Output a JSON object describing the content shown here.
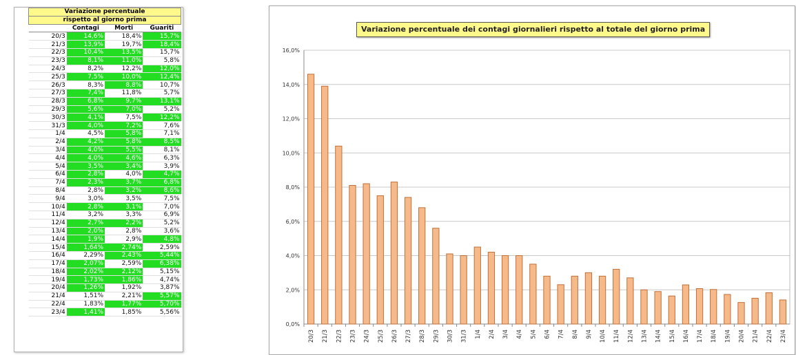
{
  "table": {
    "header_line1": "Variazione percentuale",
    "header_line2": "rispetto al giorno prima",
    "columns": [
      "Contagi",
      "Morti",
      "Guariti"
    ],
    "rows": [
      {
        "date": "20/3",
        "contagi": "14,6%",
        "morti": "18,4%",
        "guariti": "15,7%",
        "hl": [
          1,
          0,
          1
        ]
      },
      {
        "date": "21/3",
        "contagi": "13,9%",
        "morti": "19,7%",
        "guariti": "18,4%",
        "hl": [
          1,
          0,
          1
        ]
      },
      {
        "date": "22/3",
        "contagi": "10,4%",
        "morti": "13,5%",
        "guariti": "15,7%",
        "hl": [
          1,
          1,
          0
        ]
      },
      {
        "date": "23/3",
        "contagi": "8,1%",
        "morti": "11,0%",
        "guariti": "5,8%",
        "hl": [
          1,
          1,
          0
        ]
      },
      {
        "date": "24/3",
        "contagi": "8,2%",
        "morti": "12,2%",
        "guariti": "12,0%",
        "hl": [
          0,
          0,
          1
        ]
      },
      {
        "date": "25/3",
        "contagi": "7,5%",
        "morti": "10,0%",
        "guariti": "12,4%",
        "hl": [
          1,
          1,
          1
        ]
      },
      {
        "date": "26/3",
        "contagi": "8,3%",
        "morti": "8,8%",
        "guariti": "10,7%",
        "hl": [
          0,
          1,
          0
        ]
      },
      {
        "date": "27/3",
        "contagi": "7,4%",
        "morti": "11,8%",
        "guariti": "5,7%",
        "hl": [
          1,
          0,
          0
        ]
      },
      {
        "date": "28/3",
        "contagi": "6,8%",
        "morti": "9,7%",
        "guariti": "13,1%",
        "hl": [
          1,
          1,
          1
        ]
      },
      {
        "date": "29/3",
        "contagi": "5,6%",
        "morti": "7,0%",
        "guariti": "5,2%",
        "hl": [
          1,
          1,
          0
        ]
      },
      {
        "date": "30/3",
        "contagi": "4,1%",
        "morti": "7,5%",
        "guariti": "12,2%",
        "hl": [
          1,
          0,
          1
        ]
      },
      {
        "date": "31/3",
        "contagi": "4,0%",
        "morti": "7,2%",
        "guariti": "7,6%",
        "hl": [
          1,
          1,
          0
        ]
      },
      {
        "date": "1/4",
        "contagi": "4,5%",
        "morti": "5,8%",
        "guariti": "7,1%",
        "hl": [
          0,
          1,
          0
        ]
      },
      {
        "date": "2/4",
        "contagi": "4,2%",
        "morti": "5,8%",
        "guariti": "8,5%",
        "hl": [
          1,
          1,
          1
        ]
      },
      {
        "date": "3/4",
        "contagi": "4,0%",
        "morti": "5,5%",
        "guariti": "8,1%",
        "hl": [
          1,
          1,
          0
        ]
      },
      {
        "date": "4/4",
        "contagi": "4,0%",
        "morti": "4,6%",
        "guariti": "6,3%",
        "hl": [
          1,
          1,
          0
        ]
      },
      {
        "date": "5/4",
        "contagi": "3,5%",
        "morti": "3,4%",
        "guariti": "3,9%",
        "hl": [
          1,
          1,
          0
        ]
      },
      {
        "date": "6/4",
        "contagi": "2,8%",
        "morti": "4,0%",
        "guariti": "4,7%",
        "hl": [
          1,
          0,
          1
        ]
      },
      {
        "date": "7/4",
        "contagi": "2,3%",
        "morti": "3,7%",
        "guariti": "6,8%",
        "hl": [
          1,
          1,
          1
        ]
      },
      {
        "date": "8/4",
        "contagi": "2,8%",
        "morti": "3,2%",
        "guariti": "8,6%",
        "hl": [
          0,
          1,
          1
        ]
      },
      {
        "date": "9/4",
        "contagi": "3,0%",
        "morti": "3,5%",
        "guariti": "7,5%",
        "hl": [
          0,
          0,
          0
        ]
      },
      {
        "date": "10/4",
        "contagi": "2,8%",
        "morti": "3,1%",
        "guariti": "7,0%",
        "hl": [
          1,
          1,
          0
        ]
      },
      {
        "date": "11/4",
        "contagi": "3,2%",
        "morti": "3,3%",
        "guariti": "6,9%",
        "hl": [
          0,
          0,
          0
        ]
      },
      {
        "date": "12/4",
        "contagi": "2,7%",
        "morti": "2,2%",
        "guariti": "5,2%",
        "hl": [
          1,
          1,
          0
        ]
      },
      {
        "date": "13/4",
        "contagi": "2,0%",
        "morti": "2,8%",
        "guariti": "3,6%",
        "hl": [
          1,
          0,
          0
        ]
      },
      {
        "date": "14/4",
        "contagi": "1,9%",
        "morti": "2,9%",
        "guariti": "4,8%",
        "hl": [
          1,
          0,
          1
        ]
      },
      {
        "date": "15/4",
        "contagi": "1,64%",
        "morti": "2,74%",
        "guariti": "2,59%",
        "hl": [
          1,
          1,
          0
        ]
      },
      {
        "date": "16/4",
        "contagi": "2,29%",
        "morti": "2,43%",
        "guariti": "5,44%",
        "hl": [
          0,
          1,
          1
        ]
      },
      {
        "date": "17/4",
        "contagi": "2,07%",
        "morti": "2,59%",
        "guariti": "6,38%",
        "hl": [
          1,
          0,
          1
        ]
      },
      {
        "date": "18/4",
        "contagi": "2,02%",
        "morti": "2,12%",
        "guariti": "5,15%",
        "hl": [
          1,
          1,
          0
        ]
      },
      {
        "date": "19/4",
        "contagi": "1,73%",
        "morti": "1,86%",
        "guariti": "4,74%",
        "hl": [
          1,
          1,
          0
        ]
      },
      {
        "date": "20/4",
        "contagi": "1,26%",
        "morti": "1,92%",
        "guariti": "3,87%",
        "hl": [
          1,
          0,
          0
        ]
      },
      {
        "date": "21/4",
        "contagi": "1,51%",
        "morti": "2,21%",
        "guariti": "5,57%",
        "hl": [
          0,
          0,
          1
        ]
      },
      {
        "date": "22/4",
        "contagi": "1,83%",
        "morti": "1,77%",
        "guariti": "5,70%",
        "hl": [
          0,
          1,
          1
        ]
      },
      {
        "date": "23/4",
        "contagi": "1,41%",
        "morti": "1,85%",
        "guariti": "5,56%",
        "hl": [
          1,
          0,
          0
        ]
      }
    ]
  },
  "chart_data": {
    "type": "bar",
    "title": "Variazione percentuale dei contagi giornalieri rispetto al totale del giorno prima",
    "categories": [
      "20/3",
      "21/3",
      "22/3",
      "23/3",
      "24/3",
      "25/3",
      "26/3",
      "27/3",
      "28/3",
      "29/3",
      "30/3",
      "31/3",
      "1/4",
      "2/4",
      "3/4",
      "4/4",
      "5/4",
      "6/4",
      "7/4",
      "8/4",
      "9/4",
      "10/4",
      "11/4",
      "12/4",
      "13/4",
      "14/4",
      "15/4",
      "16/4",
      "17/4",
      "18/4",
      "19/4",
      "20/4",
      "21/4",
      "22/4",
      "23/4"
    ],
    "values": [
      14.6,
      13.9,
      10.4,
      8.1,
      8.2,
      7.5,
      8.3,
      7.4,
      6.8,
      5.6,
      4.1,
      4.0,
      4.5,
      4.2,
      4.0,
      4.0,
      3.5,
      2.8,
      2.3,
      2.8,
      3.0,
      2.8,
      3.2,
      2.7,
      2.0,
      1.9,
      1.64,
      2.29,
      2.07,
      2.02,
      1.73,
      1.26,
      1.51,
      1.83,
      1.41
    ],
    "ylim": [
      0,
      16
    ],
    "yticks": [
      "0,0%",
      "2,0%",
      "4,0%",
      "6,0%",
      "8,0%",
      "10,0%",
      "12,0%",
      "14,0%",
      "16,0%"
    ],
    "grid": true,
    "colors": {
      "bar_fill": "#f6b98a",
      "bar_stroke": "#c0703a",
      "grid": "#c8c8c8",
      "highlight": "#22dd22",
      "title_bg": "#fff88a"
    }
  }
}
